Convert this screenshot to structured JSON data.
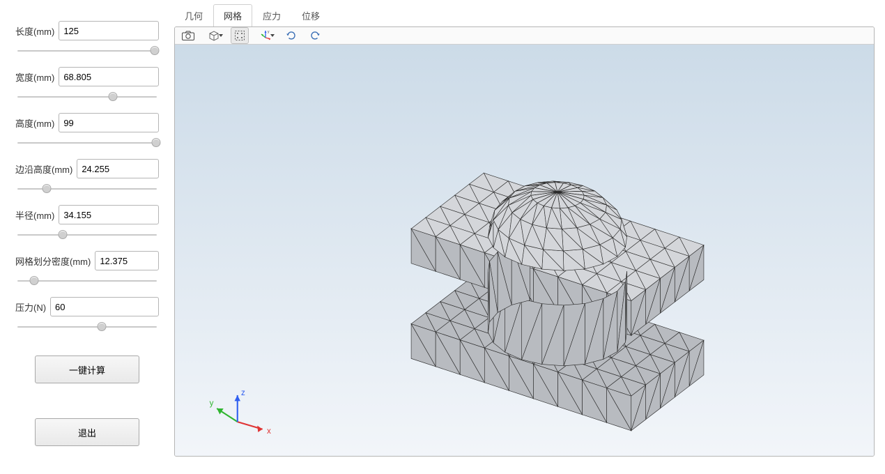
{
  "sidebar": {
    "params": [
      {
        "label": "长度(mm)",
        "value": "125",
        "slider_pct": 97
      },
      {
        "label": "宽度(mm)",
        "value": "68.805",
        "slider_pct": 68
      },
      {
        "label": "高度(mm)",
        "value": "99",
        "slider_pct": 98
      },
      {
        "label": "边沿高度(mm)",
        "value": "24.255",
        "slider_pct": 22
      },
      {
        "label": "半径(mm)",
        "value": "34.155",
        "slider_pct": 33
      },
      {
        "label": "网格划分密度(mm)",
        "value": "12.375",
        "slider_pct": 13
      },
      {
        "label": "压力(N)",
        "value": "60",
        "slider_pct": 60
      }
    ],
    "buttons": {
      "compute": "一键计算",
      "exit": "退出"
    }
  },
  "tabs": {
    "items": [
      "几何",
      "网格",
      "应力",
      "位移"
    ],
    "active_index": 1
  },
  "toolbar": {
    "buttons": [
      {
        "name": "camera-icon"
      },
      {
        "name": "cube-icon",
        "caret": true
      },
      {
        "name": "fit-icon",
        "active": true
      },
      {
        "name": "axis-xyz-icon",
        "caret": true
      },
      {
        "name": "refresh-cw-icon"
      },
      {
        "name": "refresh-ccw-icon"
      }
    ]
  },
  "viewport": {
    "background_top": "#ccdbe8",
    "background_bottom": "#f3f6fa",
    "mesh_fill": "#b8bbc0",
    "mesh_fill_light": "#d4d6da",
    "mesh_edge": "#2b2b2b",
    "axis": {
      "x_color": "#e03434",
      "y_color": "#2fb52f",
      "z_color": "#2f5ff0",
      "labels": {
        "x": "x",
        "y": "y",
        "z": "z"
      }
    }
  }
}
